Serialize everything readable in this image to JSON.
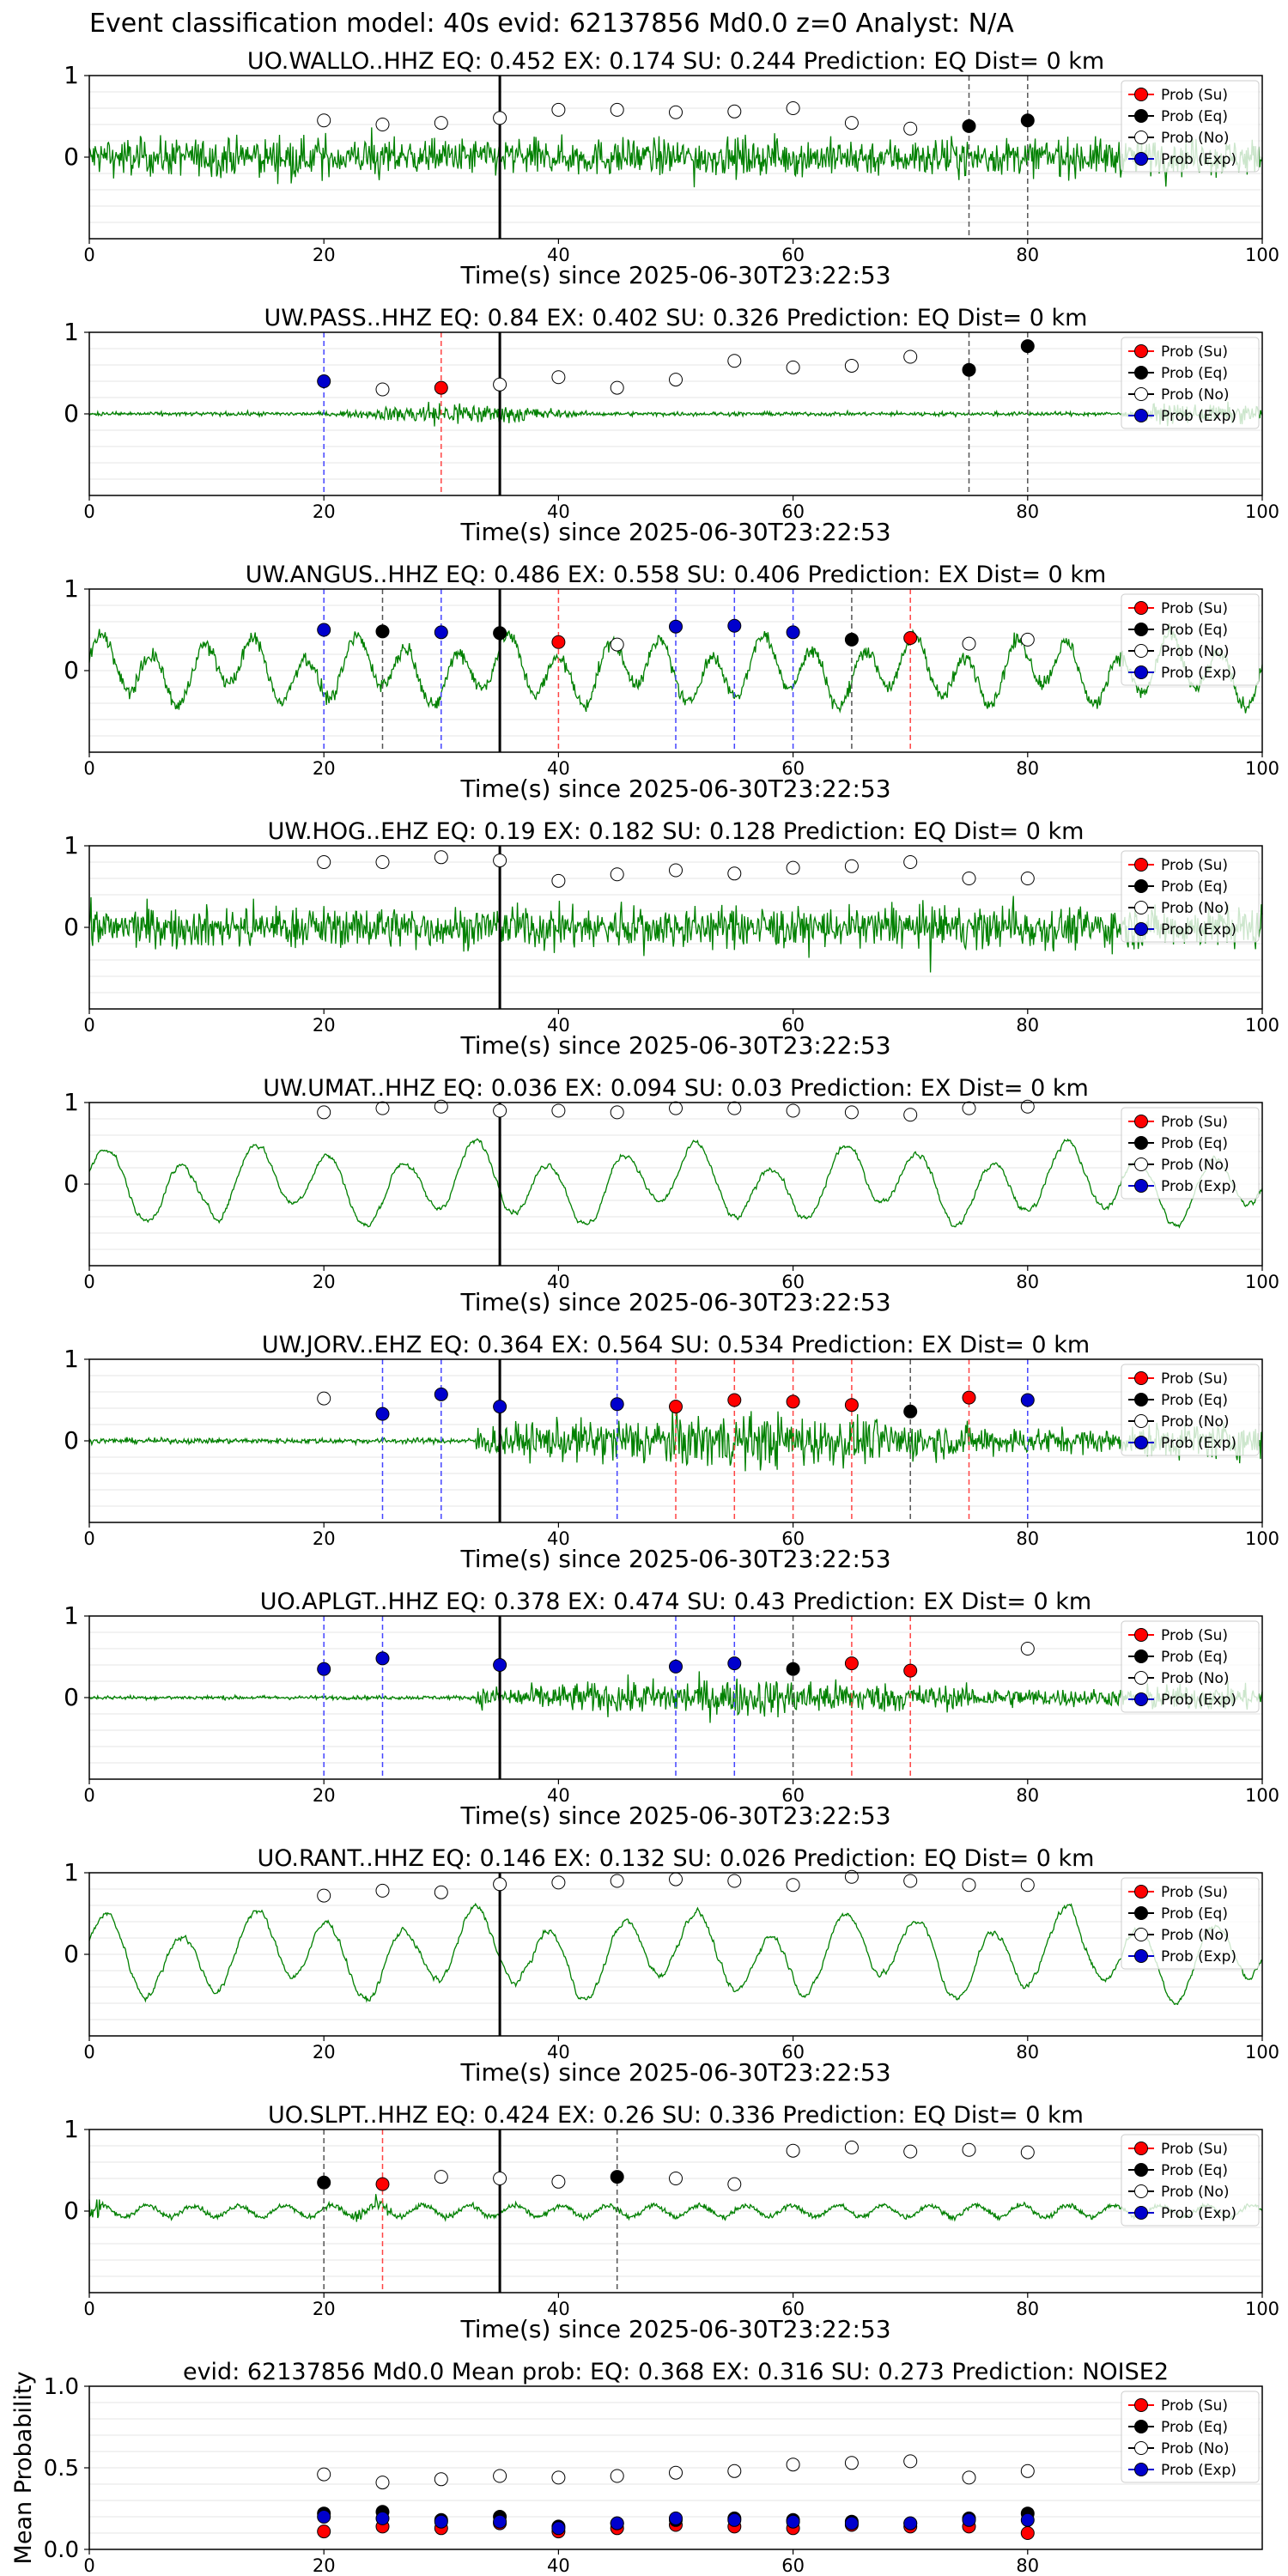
{
  "suptitle": "Event classification model: 40s evid: 62137856 Md0.0 z=0 Analyst: N/A",
  "colors": {
    "trace": "#008000",
    "su": "#ff0000",
    "eq": "#000000",
    "no": "#ffffff",
    "exp": "#0000cd",
    "grid": "#e6e6e6"
  },
  "legend_labels": [
    "Prob (Su)",
    "Prob (Eq)",
    "Prob (No)",
    "Prob (Exp)"
  ],
  "chart_data": [
    {
      "type": "scatter",
      "title": "UO.WALLO..HHZ   EQ: 0.452  EX: 0.174  SU: 0.244   Prediction: EQ    Dist= 0 km",
      "xlabel": "Time(s) since 2025-06-30T23:22:53",
      "xlim": [
        0,
        100
      ],
      "ylim": [
        -1,
        1
      ],
      "xticks": [
        "0",
        "20",
        "40",
        "60",
        "80",
        "100"
      ],
      "yticks": [
        "1",
        "0"
      ],
      "trace_style": "dense",
      "trace_amp": 0.45,
      "pick_line": 35,
      "markers": [
        {
          "x": 20,
          "y": 0.45,
          "c": "no"
        },
        {
          "x": 25,
          "y": 0.4,
          "c": "no"
        },
        {
          "x": 30,
          "y": 0.42,
          "c": "no"
        },
        {
          "x": 35,
          "y": 0.48,
          "c": "no"
        },
        {
          "x": 40,
          "y": 0.58,
          "c": "no"
        },
        {
          "x": 45,
          "y": 0.58,
          "c": "no"
        },
        {
          "x": 50,
          "y": 0.55,
          "c": "no"
        },
        {
          "x": 55,
          "y": 0.56,
          "c": "no"
        },
        {
          "x": 60,
          "y": 0.6,
          "c": "no"
        },
        {
          "x": 65,
          "y": 0.42,
          "c": "no"
        },
        {
          "x": 70,
          "y": 0.35,
          "c": "no"
        },
        {
          "x": 75,
          "y": 0.38,
          "c": "eq"
        },
        {
          "x": 80,
          "y": 0.45,
          "c": "eq"
        }
      ]
    },
    {
      "type": "scatter",
      "title": "UW.PASS..HHZ   EQ: 0.84  EX: 0.402  SU: 0.326   Prediction: EQ    Dist= 0 km",
      "xlabel": "Time(s) since 2025-06-30T23:22:53",
      "xlim": [
        0,
        100
      ],
      "ylim": [
        -1,
        1
      ],
      "xticks": [
        "0",
        "20",
        "40",
        "60",
        "80",
        "100"
      ],
      "yticks": [
        "1",
        "0"
      ],
      "trace_style": "burst",
      "trace_amp": 0.25,
      "pick_line": 35,
      "markers": [
        {
          "x": 20,
          "y": 0.4,
          "c": "exp"
        },
        {
          "x": 25,
          "y": 0.3,
          "c": "no"
        },
        {
          "x": 30,
          "y": 0.32,
          "c": "su"
        },
        {
          "x": 35,
          "y": 0.36,
          "c": "no"
        },
        {
          "x": 40,
          "y": 0.45,
          "c": "no"
        },
        {
          "x": 45,
          "y": 0.32,
          "c": "no"
        },
        {
          "x": 50,
          "y": 0.42,
          "c": "no"
        },
        {
          "x": 55,
          "y": 0.65,
          "c": "no"
        },
        {
          "x": 60,
          "y": 0.57,
          "c": "no"
        },
        {
          "x": 65,
          "y": 0.59,
          "c": "no"
        },
        {
          "x": 70,
          "y": 0.7,
          "c": "no"
        },
        {
          "x": 75,
          "y": 0.54,
          "c": "eq"
        },
        {
          "x": 80,
          "y": 0.83,
          "c": "eq"
        }
      ]
    },
    {
      "type": "scatter",
      "title": "UW.ANGUS..HHZ   EQ: 0.486  EX: 0.558  SU: 0.406   Prediction: EX    Dist= 0 km",
      "xlabel": "Time(s) since 2025-06-30T23:22:53",
      "xlim": [
        0,
        100
      ],
      "ylim": [
        -1,
        1
      ],
      "xticks": [
        "0",
        "20",
        "40",
        "60",
        "80",
        "100"
      ],
      "yticks": [
        "1",
        "0"
      ],
      "trace_style": "wave",
      "trace_amp": 0.45,
      "pick_line": 35,
      "markers": [
        {
          "x": 20,
          "y": 0.5,
          "c": "exp"
        },
        {
          "x": 25,
          "y": 0.48,
          "c": "eq"
        },
        {
          "x": 30,
          "y": 0.47,
          "c": "exp"
        },
        {
          "x": 35,
          "y": 0.46,
          "c": "eq"
        },
        {
          "x": 40,
          "y": 0.35,
          "c": "su"
        },
        {
          "x": 45,
          "y": 0.32,
          "c": "no"
        },
        {
          "x": 50,
          "y": 0.54,
          "c": "exp"
        },
        {
          "x": 55,
          "y": 0.55,
          "c": "exp"
        },
        {
          "x": 60,
          "y": 0.47,
          "c": "exp"
        },
        {
          "x": 65,
          "y": 0.38,
          "c": "eq"
        },
        {
          "x": 70,
          "y": 0.4,
          "c": "su"
        },
        {
          "x": 75,
          "y": 0.33,
          "c": "no"
        },
        {
          "x": 80,
          "y": 0.38,
          "c": "no"
        }
      ]
    },
    {
      "type": "scatter",
      "title": "UW.HOG..EHZ   EQ: 0.19  EX: 0.182  SU: 0.128   Prediction: EQ    Dist= 0 km",
      "xlabel": "Time(s) since 2025-06-30T23:22:53",
      "xlim": [
        0,
        100
      ],
      "ylim": [
        -1,
        1
      ],
      "xticks": [
        "0",
        "20",
        "40",
        "60",
        "80",
        "100"
      ],
      "yticks": [
        "1",
        "0"
      ],
      "trace_style": "dense",
      "trace_amp": 0.5,
      "pick_line": 35,
      "markers": [
        {
          "x": 20,
          "y": 0.8,
          "c": "no"
        },
        {
          "x": 25,
          "y": 0.8,
          "c": "no"
        },
        {
          "x": 30,
          "y": 0.86,
          "c": "no"
        },
        {
          "x": 35,
          "y": 0.82,
          "c": "no"
        },
        {
          "x": 40,
          "y": 0.57,
          "c": "no"
        },
        {
          "x": 45,
          "y": 0.65,
          "c": "no"
        },
        {
          "x": 50,
          "y": 0.7,
          "c": "no"
        },
        {
          "x": 55,
          "y": 0.66,
          "c": "no"
        },
        {
          "x": 60,
          "y": 0.73,
          "c": "no"
        },
        {
          "x": 65,
          "y": 0.75,
          "c": "no"
        },
        {
          "x": 70,
          "y": 0.8,
          "c": "no"
        },
        {
          "x": 75,
          "y": 0.6,
          "c": "no"
        },
        {
          "x": 80,
          "y": 0.6,
          "c": "no"
        }
      ]
    },
    {
      "type": "scatter",
      "title": "UW.UMAT..HHZ   EQ: 0.036  EX: 0.094  SU: 0.03   Prediction: EX    Dist= 0 km",
      "xlabel": "Time(s) since 2025-06-30T23:22:53",
      "xlim": [
        0,
        100
      ],
      "ylim": [
        -1,
        1
      ],
      "xticks": [
        "0",
        "20",
        "40",
        "60",
        "80",
        "100"
      ],
      "yticks": [
        "1",
        "0"
      ],
      "trace_style": "slow",
      "trace_amp": 0.55,
      "pick_line": 35,
      "markers": [
        {
          "x": 20,
          "y": 0.88,
          "c": "no"
        },
        {
          "x": 25,
          "y": 0.93,
          "c": "no"
        },
        {
          "x": 30,
          "y": 0.95,
          "c": "no"
        },
        {
          "x": 35,
          "y": 0.9,
          "c": "no"
        },
        {
          "x": 40,
          "y": 0.9,
          "c": "no"
        },
        {
          "x": 45,
          "y": 0.88,
          "c": "no"
        },
        {
          "x": 50,
          "y": 0.93,
          "c": "no"
        },
        {
          "x": 55,
          "y": 0.93,
          "c": "no"
        },
        {
          "x": 60,
          "y": 0.9,
          "c": "no"
        },
        {
          "x": 65,
          "y": 0.88,
          "c": "no"
        },
        {
          "x": 70,
          "y": 0.85,
          "c": "no"
        },
        {
          "x": 75,
          "y": 0.93,
          "c": "no"
        },
        {
          "x": 80,
          "y": 0.95,
          "c": "no"
        }
      ]
    },
    {
      "type": "scatter",
      "title": "UW.JORV..EHZ   EQ: 0.364  EX: 0.564  SU: 0.534   Prediction: EX    Dist= 0 km",
      "xlabel": "Time(s) since 2025-06-30T23:22:53",
      "xlim": [
        0,
        100
      ],
      "ylim": [
        -1,
        1
      ],
      "xticks": [
        "0",
        "20",
        "40",
        "60",
        "80",
        "100"
      ],
      "yticks": [
        "1",
        "0"
      ],
      "trace_style": "quiet_then_burst",
      "trace_amp": 0.5,
      "pick_line": 35,
      "markers": [
        {
          "x": 20,
          "y": 0.52,
          "c": "no"
        },
        {
          "x": 25,
          "y": 0.33,
          "c": "exp"
        },
        {
          "x": 30,
          "y": 0.57,
          "c": "exp"
        },
        {
          "x": 35,
          "y": 0.42,
          "c": "exp"
        },
        {
          "x": 45,
          "y": 0.45,
          "c": "exp"
        },
        {
          "x": 50,
          "y": 0.42,
          "c": "su"
        },
        {
          "x": 55,
          "y": 0.5,
          "c": "su"
        },
        {
          "x": 60,
          "y": 0.48,
          "c": "su"
        },
        {
          "x": 65,
          "y": 0.44,
          "c": "su"
        },
        {
          "x": 70,
          "y": 0.36,
          "c": "eq"
        },
        {
          "x": 75,
          "y": 0.53,
          "c": "su"
        },
        {
          "x": 80,
          "y": 0.5,
          "c": "exp"
        }
      ]
    },
    {
      "type": "scatter",
      "title": "UO.APLGT..HHZ   EQ: 0.378  EX: 0.474  SU: 0.43   Prediction: EX    Dist= 0 km",
      "xlabel": "Time(s) since 2025-06-30T23:22:53",
      "xlim": [
        0,
        100
      ],
      "ylim": [
        -1,
        1
      ],
      "xticks": [
        "0",
        "20",
        "40",
        "60",
        "80",
        "100"
      ],
      "yticks": [
        "1",
        "0"
      ],
      "trace_style": "quiet_then_burst",
      "trace_amp": 0.35,
      "pick_line": 35,
      "markers": [
        {
          "x": 20,
          "y": 0.35,
          "c": "exp"
        },
        {
          "x": 25,
          "y": 0.48,
          "c": "exp"
        },
        {
          "x": 35,
          "y": 0.4,
          "c": "exp"
        },
        {
          "x": 50,
          "y": 0.38,
          "c": "exp"
        },
        {
          "x": 55,
          "y": 0.42,
          "c": "exp"
        },
        {
          "x": 60,
          "y": 0.35,
          "c": "eq"
        },
        {
          "x": 65,
          "y": 0.42,
          "c": "su"
        },
        {
          "x": 70,
          "y": 0.33,
          "c": "su"
        },
        {
          "x": 80,
          "y": 0.6,
          "c": "no"
        }
      ]
    },
    {
      "type": "scatter",
      "title": "UO.RANT..HHZ   EQ: 0.146  EX: 0.132  SU: 0.026   Prediction: EQ    Dist= 0 km",
      "xlabel": "Time(s) since 2025-06-30T23:22:53",
      "xlim": [
        0,
        100
      ],
      "ylim": [
        -1,
        1
      ],
      "xticks": [
        "0",
        "20",
        "40",
        "60",
        "80",
        "100"
      ],
      "yticks": [
        "1",
        "0"
      ],
      "trace_style": "slow",
      "trace_amp": 0.6,
      "pick_line": 35,
      "markers": [
        {
          "x": 20,
          "y": 0.72,
          "c": "no"
        },
        {
          "x": 25,
          "y": 0.78,
          "c": "no"
        },
        {
          "x": 30,
          "y": 0.76,
          "c": "no"
        },
        {
          "x": 35,
          "y": 0.86,
          "c": "no"
        },
        {
          "x": 40,
          "y": 0.88,
          "c": "no"
        },
        {
          "x": 45,
          "y": 0.9,
          "c": "no"
        },
        {
          "x": 50,
          "y": 0.92,
          "c": "no"
        },
        {
          "x": 55,
          "y": 0.9,
          "c": "no"
        },
        {
          "x": 60,
          "y": 0.85,
          "c": "no"
        },
        {
          "x": 65,
          "y": 0.95,
          "c": "no"
        },
        {
          "x": 70,
          "y": 0.9,
          "c": "no"
        },
        {
          "x": 75,
          "y": 0.85,
          "c": "no"
        },
        {
          "x": 80,
          "y": 0.85,
          "c": "no"
        }
      ]
    },
    {
      "type": "scatter",
      "title": "UO.SLPT..HHZ   EQ: 0.424  EX: 0.26  SU: 0.336   Prediction: EQ    Dist= 0 km",
      "xlabel": "Time(s) since 2025-06-30T23:22:53",
      "xlim": [
        0,
        100
      ],
      "ylim": [
        -1,
        1
      ],
      "xticks": [
        "0",
        "20",
        "40",
        "60",
        "80",
        "100"
      ],
      "yticks": [
        "1",
        "0"
      ],
      "trace_style": "slpt",
      "trace_amp": 0.25,
      "pick_line": 35,
      "markers": [
        {
          "x": 20,
          "y": 0.35,
          "c": "eq"
        },
        {
          "x": 25,
          "y": 0.33,
          "c": "su"
        },
        {
          "x": 30,
          "y": 0.42,
          "c": "no"
        },
        {
          "x": 35,
          "y": 0.4,
          "c": "no"
        },
        {
          "x": 40,
          "y": 0.36,
          "c": "no"
        },
        {
          "x": 45,
          "y": 0.42,
          "c": "eq"
        },
        {
          "x": 50,
          "y": 0.4,
          "c": "no"
        },
        {
          "x": 55,
          "y": 0.33,
          "c": "no"
        },
        {
          "x": 60,
          "y": 0.74,
          "c": "no"
        },
        {
          "x": 65,
          "y": 0.78,
          "c": "no"
        },
        {
          "x": 70,
          "y": 0.73,
          "c": "no"
        },
        {
          "x": 75,
          "y": 0.75,
          "c": "no"
        },
        {
          "x": 80,
          "y": 0.72,
          "c": "no"
        }
      ]
    },
    {
      "type": "scatter",
      "title": "evid: 62137856  Md0.0   Mean prob:    EQ: 0.368  EX: 0.316  SU: 0.273   Prediction: NOISE2",
      "xlabel": "",
      "ylabel": "Mean Probability",
      "xlim": [
        0,
        100
      ],
      "ylim": [
        0,
        1
      ],
      "xticks": [
        "0",
        "20",
        "40",
        "60",
        "80"
      ],
      "yticks": [
        "1.0",
        "0.5",
        "0.0"
      ],
      "trace_style": "none",
      "series": [
        {
          "name": "Prob (Su)",
          "c": "su",
          "x": [
            20,
            25,
            30,
            35,
            40,
            45,
            50,
            55,
            60,
            65,
            70,
            75,
            80
          ],
          "values": [
            0.11,
            0.14,
            0.13,
            0.16,
            0.11,
            0.13,
            0.15,
            0.14,
            0.13,
            0.15,
            0.14,
            0.14,
            0.1
          ]
        },
        {
          "name": "Prob (Eq)",
          "c": "eq",
          "x": [
            20,
            25,
            30,
            35,
            40,
            45,
            50,
            55,
            60,
            65,
            70,
            75,
            80
          ],
          "values": [
            0.22,
            0.23,
            0.18,
            0.2,
            0.14,
            0.16,
            0.18,
            0.19,
            0.18,
            0.17,
            0.16,
            0.19,
            0.22
          ]
        },
        {
          "name": "Prob (No)",
          "c": "no",
          "x": [
            20,
            25,
            30,
            35,
            40,
            45,
            50,
            55,
            60,
            65,
            70,
            75,
            80
          ],
          "values": [
            0.46,
            0.41,
            0.43,
            0.45,
            0.44,
            0.45,
            0.47,
            0.48,
            0.52,
            0.53,
            0.54,
            0.44,
            0.48
          ]
        },
        {
          "name": "Prob (Exp)",
          "c": "exp",
          "x": [
            20,
            25,
            30,
            35,
            40,
            45,
            50,
            55,
            60,
            65,
            70,
            75,
            80
          ],
          "values": [
            0.2,
            0.19,
            0.17,
            0.17,
            0.13,
            0.16,
            0.19,
            0.18,
            0.17,
            0.16,
            0.16,
            0.18,
            0.18
          ]
        }
      ]
    }
  ]
}
